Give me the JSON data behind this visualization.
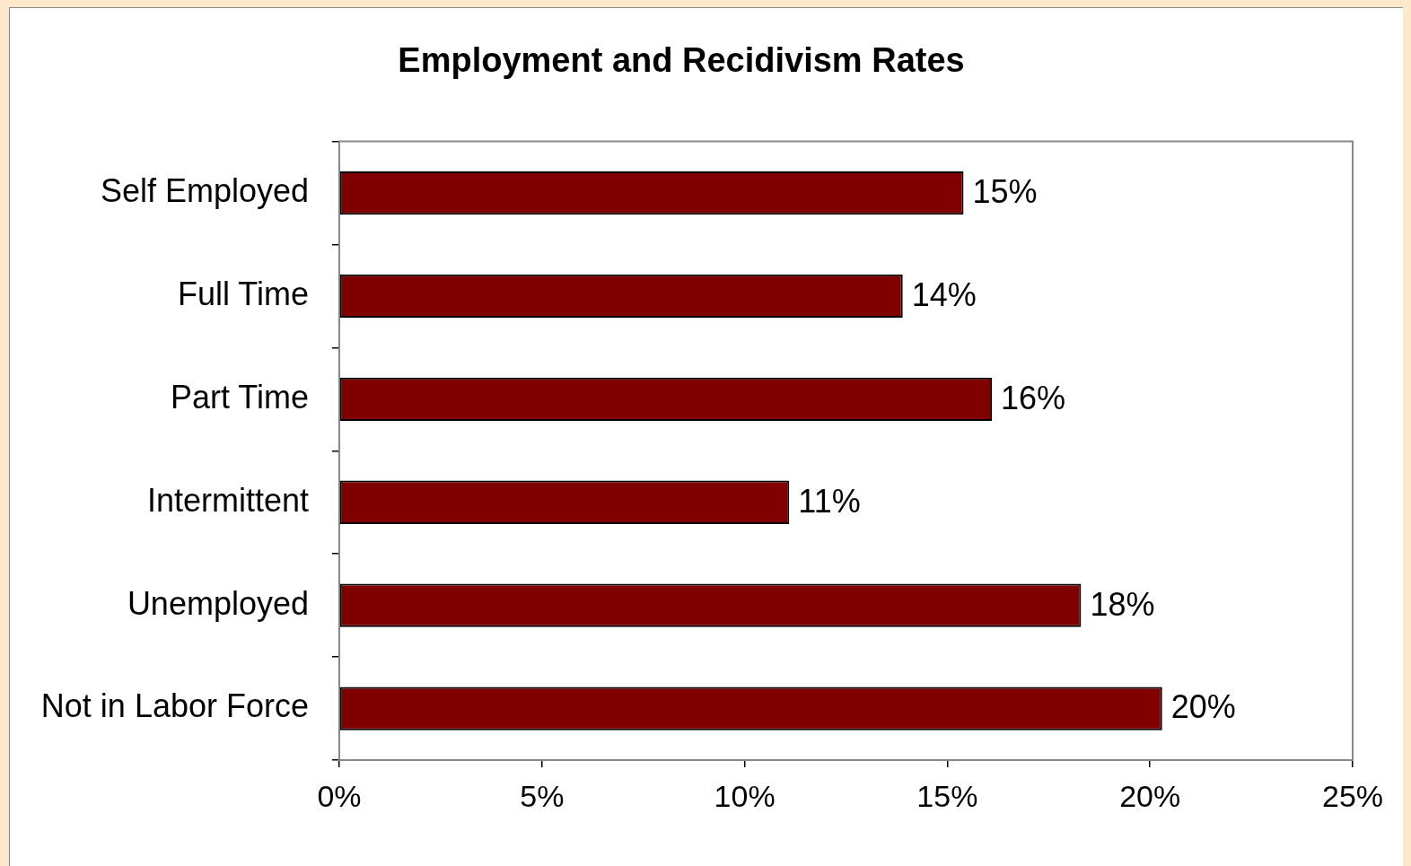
{
  "chart_data": {
    "type": "bar",
    "orientation": "horizontal",
    "title": "Employment and Recidivism Rates",
    "categories": [
      "Self Employed",
      "Full Time",
      "Part Time",
      "Intermittent",
      "Unemployed",
      "Not in Labor Force"
    ],
    "values": [
      15.4,
      13.9,
      16.1,
      11.1,
      18.3,
      20.3
    ],
    "value_labels": [
      "15%",
      "14%",
      "16%",
      "11%",
      "18%",
      "20%"
    ],
    "color": "#800000",
    "xlim": [
      0,
      25
    ],
    "xticks": [
      {
        "value": 0,
        "label": "0%"
      },
      {
        "value": 5,
        "label": "5%"
      },
      {
        "value": 10,
        "label": "10%"
      },
      {
        "value": 15,
        "label": "15%"
      },
      {
        "value": 20,
        "label": "20%"
      },
      {
        "value": 25,
        "label": "25%"
      }
    ],
    "grid": false,
    "legend": false
  }
}
